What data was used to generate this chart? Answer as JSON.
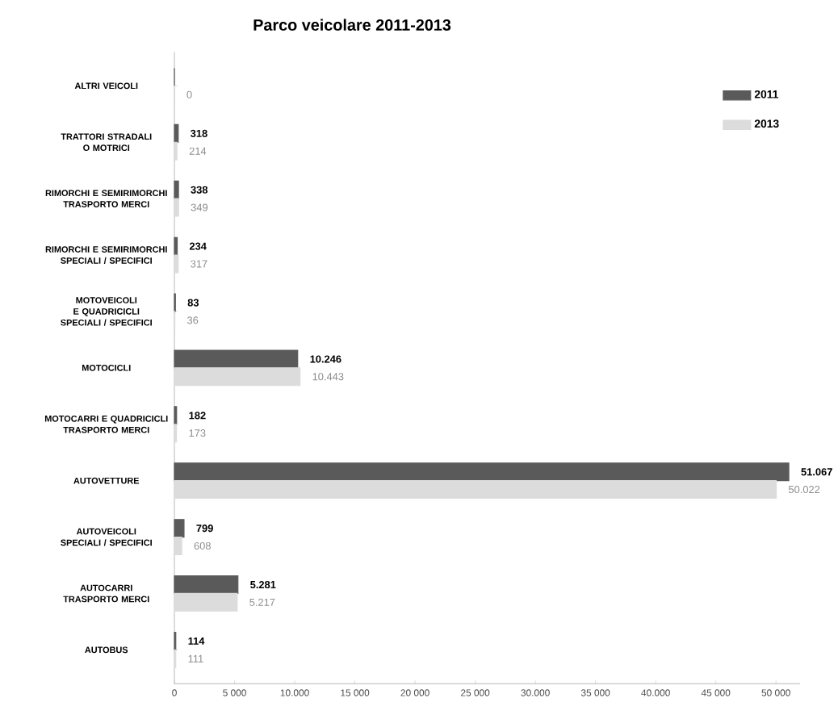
{
  "chart_data": {
    "type": "bar",
    "orientation": "horizontal",
    "title": "Parco veicolare 2011-2013",
    "categories": [
      "ALTRI VEICOLI",
      "TRATTORI STRADALI O MOTRICI",
      "RIMORCHI E SEMIRIMORCHI TRASPORTO MERCI",
      "RIMORCHI E SEMIRIMORCHI SPECIALI / SPECIFICI",
      "MOTOVEICOLI E QUADRICICLI SPECIALI / SPECIFICI",
      "MOTOCICLI",
      "MOTOCARRI E QUADRICICLI TRASPORTO MERCI",
      "AUTOVETTURE",
      "AUTOVEICOLI SPECIALI / SPECIFICI",
      "AUTOCARRI TRASPORTO MERCI",
      "AUTOBUS"
    ],
    "series": [
      {
        "name": "2011",
        "color": "#5a5a5a",
        "values": [
          0,
          318,
          338,
          234,
          83,
          10246,
          182,
          51067,
          799,
          5281,
          114
        ],
        "value_labels": [
          null,
          "318",
          "338",
          "234",
          "83",
          "10.246",
          "182",
          "51.067",
          "799",
          "5.281",
          "114"
        ]
      },
      {
        "name": "2013",
        "color": "#dcdcdc",
        "values": [
          0,
          214,
          349,
          317,
          36,
          10443,
          173,
          50022,
          608,
          5217,
          111
        ],
        "value_labels": [
          "0",
          "214",
          "349",
          "317",
          "36",
          "10.443",
          "173",
          "50.022",
          "608",
          "5.217",
          "111"
        ]
      }
    ],
    "xlim": [
      0,
      52000
    ],
    "xticks": [
      0,
      {
        "value": 5000,
        "label": "5 000"
      },
      {
        "value": 10000,
        "label": "10.000"
      },
      {
        "value": 15000,
        "label": "15 000"
      },
      {
        "value": 20000,
        "label": "20 000"
      },
      {
        "value": 25000,
        "label": "25 000"
      },
      {
        "value": 30000,
        "label": "30.000"
      },
      {
        "value": 35000,
        "label": "35 000"
      },
      {
        "value": 40000,
        "label": "40.000"
      },
      {
        "value": 45000,
        "label": "45 000"
      },
      {
        "value": 50000,
        "label": "50 000"
      }
    ],
    "legend": "top right",
    "grid": false
  }
}
